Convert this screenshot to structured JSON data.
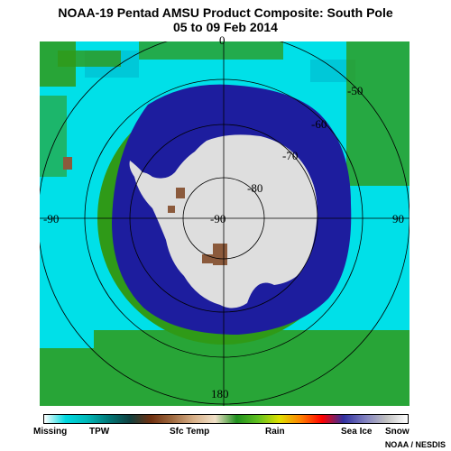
{
  "header": {
    "title": "NOAA-19 Pentad AMSU Product Composite: South Pole",
    "subtitle": "05 to 09 Feb 2014"
  },
  "map": {
    "projection": "polar-stereographic-south",
    "latitude_labels": [
      "-50",
      "-60",
      "-70",
      "-80",
      "-90"
    ],
    "longitude_labels": [
      "0",
      "90",
      "180",
      "-90"
    ]
  },
  "legend": {
    "categories": [
      {
        "label": "Missing",
        "color": "#ffffff"
      },
      {
        "label": "TPW",
        "color": "#00c8d2"
      },
      {
        "label": "Sfc Temp",
        "color": "#8b5a3c"
      },
      {
        "label": "Rain",
        "color": "#3fae2a"
      },
      {
        "label": "Sea Ice",
        "color": "#1a1a9c"
      },
      {
        "label": "Snow",
        "color": "#e0e0e0"
      }
    ],
    "gradient_colors": [
      "#ffffff",
      "#00d8e0",
      "#00b8b8",
      "#007878",
      "#104040",
      "#703010",
      "#a06a40",
      "#d8b088",
      "#f0e0c8",
      "#1f8f1f",
      "#60c020",
      "#e0e000",
      "#ff8000",
      "#ff0000",
      "#3030a0",
      "#8080c0",
      "#c0c0c0",
      "#ffffff"
    ]
  },
  "colors": {
    "ocean_tpw": "#00e0e8",
    "rain_green": "#2f9a18",
    "sea_ice": "#1d1d9e",
    "snow": "#dedede",
    "land_brown": "#8b5a3c"
  },
  "credit": "NOAA / NESDIS"
}
